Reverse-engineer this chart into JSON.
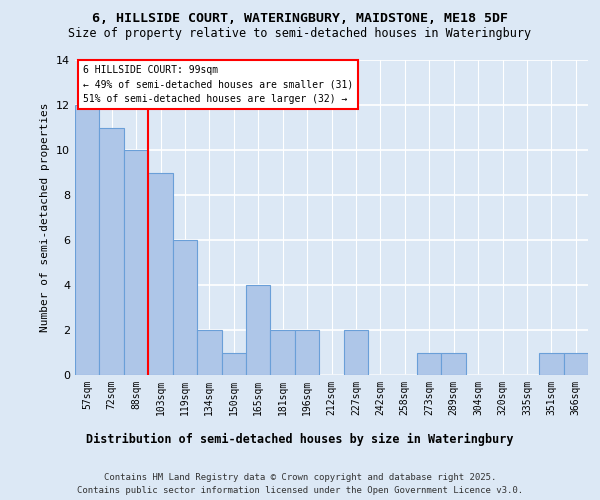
{
  "title_line1": "6, HILLSIDE COURT, WATERINGBURY, MAIDSTONE, ME18 5DF",
  "title_line2": "Size of property relative to semi-detached houses in Wateringbury",
  "xlabel": "Distribution of semi-detached houses by size in Wateringbury",
  "ylabel": "Number of semi-detached properties",
  "categories": [
    "57sqm",
    "72sqm",
    "88sqm",
    "103sqm",
    "119sqm",
    "134sqm",
    "150sqm",
    "165sqm",
    "181sqm",
    "196sqm",
    "212sqm",
    "227sqm",
    "242sqm",
    "258sqm",
    "273sqm",
    "289sqm",
    "304sqm",
    "320sqm",
    "335sqm",
    "351sqm",
    "366sqm"
  ],
  "values": [
    12,
    11,
    10,
    9,
    6,
    2,
    1,
    4,
    2,
    2,
    0,
    2,
    0,
    0,
    1,
    1,
    0,
    0,
    0,
    1,
    1
  ],
  "bar_color": "#aec6e8",
  "bar_edge_color": "#6a9fd8",
  "red_line_index": 2,
  "annotation_title": "6 HILLSIDE COURT: 99sqm",
  "annotation_line2": "← 49% of semi-detached houses are smaller (31)",
  "annotation_line3": "51% of semi-detached houses are larger (32) →",
  "ylim": [
    0,
    14
  ],
  "yticks": [
    0,
    2,
    4,
    6,
    8,
    10,
    12,
    14
  ],
  "footer_line1": "Contains HM Land Registry data © Crown copyright and database right 2025.",
  "footer_line2": "Contains public sector information licensed under the Open Government Licence v3.0.",
  "bg_color": "#dce8f5",
  "plot_bg_color": "#dce8f5"
}
